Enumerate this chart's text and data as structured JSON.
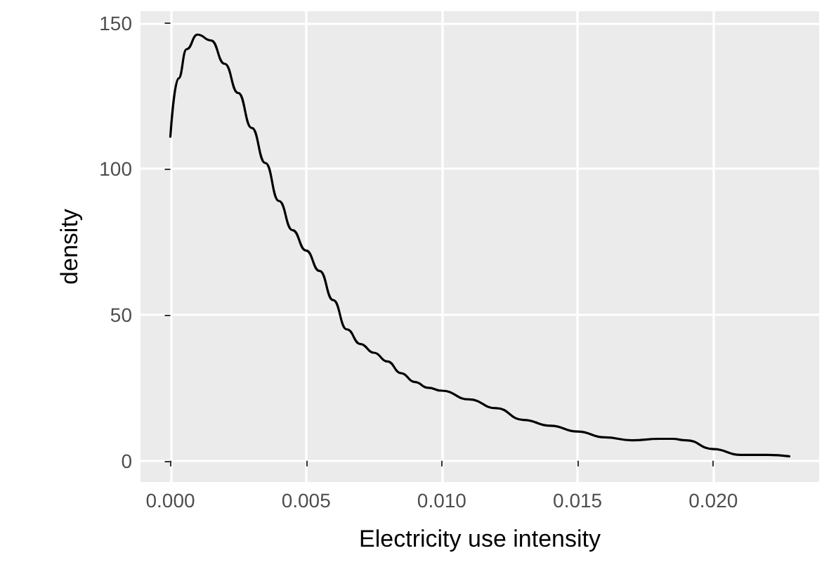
{
  "chart_data": {
    "type": "line",
    "xlabel": "Electricity use intensity",
    "ylabel": "density",
    "series": [
      {
        "color": "#000000",
        "x": [
          0,
          0.0003,
          0.0006,
          0.001,
          0.0015,
          0.002,
          0.0025,
          0.003,
          0.0035,
          0.004,
          0.0045,
          0.005,
          0.0055,
          0.006,
          0.0065,
          0.007,
          0.0075,
          0.008,
          0.0085,
          0.009,
          0.0095,
          0.01,
          0.011,
          0.012,
          0.013,
          0.014,
          0.015,
          0.016,
          0.017,
          0.018,
          0.0185,
          0.019,
          0.02,
          0.021,
          0.022,
          0.0228
        ],
        "values": [
          111,
          131,
          141,
          146,
          144,
          136,
          126,
          114,
          102,
          89,
          79,
          72,
          65,
          55,
          45,
          40,
          37,
          34,
          30,
          27,
          25,
          24,
          21,
          18,
          14,
          12,
          10,
          8,
          7,
          7.5,
          7.5,
          7,
          4,
          2,
          2,
          1.5
        ]
      }
    ],
    "xlim": [
      -0.0011,
      0.0239
    ],
    "xticks": [
      {
        "value": 0,
        "label": "0.000"
      },
      {
        "value": 0.005,
        "label": "0.005"
      },
      {
        "value": 0.01,
        "label": "0.010"
      },
      {
        "value": 0.015,
        "label": "0.015"
      },
      {
        "value": 0.02,
        "label": "0.020"
      }
    ],
    "ylim": [
      -7.3,
      154
    ],
    "yticks": [
      0,
      50,
      100,
      150
    ],
    "grid": true,
    "marker": "none",
    "line_style": "solid"
  }
}
